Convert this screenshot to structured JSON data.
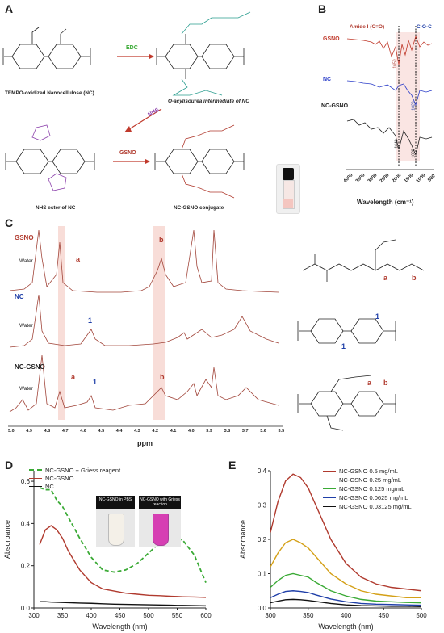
{
  "panelA": {
    "letter": "A",
    "struct1_label": "TEMPO-oxidized Nanocellulose (NC)",
    "struct2_label": "O-acylisourea intermediate of NC",
    "struct3_label": "NHS ester of NC",
    "struct4_label": "NC-GSNO conjugate",
    "reagent1": "EDC",
    "reagent2": "NHS",
    "reagent3": "GSNO",
    "n": "n"
  },
  "panelB": {
    "letter": "B",
    "label_amide": "Amide I (C=O)",
    "label_coc": "C-O-C",
    "traces": [
      "GSNO",
      "NC",
      "NC-GSNO"
    ],
    "peak_gsno": "1650",
    "peak_nc": "1020",
    "peak_ncgsno_1": "1640",
    "peak_ncgsno_2": "1020",
    "xticks": [
      "4000",
      "3500",
      "3000",
      "2500",
      "2000",
      "1500",
      "1000",
      "500"
    ],
    "xlabel": "Wavelength (cm⁻¹)"
  },
  "panelC": {
    "letter": "C",
    "spectra": [
      "GSNO",
      "NC",
      "NC-GSNO"
    ],
    "water": "Water",
    "peak_a": "a",
    "peak_b": "b",
    "peak_1": "1",
    "xticks": [
      "5.0",
      "4.9",
      "4.8",
      "4.7",
      "4.6",
      "4.5",
      "4.4",
      "4.3",
      "4.2",
      "4.1",
      "4.0",
      "3.9",
      "3.8",
      "3.7",
      "3.6",
      "3.5"
    ],
    "xlabel": "ppm",
    "n": "n"
  },
  "panelD": {
    "letter": "D",
    "legend": [
      "NC-GSNO + Griess reagent",
      "NC-GSNO",
      "NC"
    ],
    "inset1_title": "NC-GSNO in PBS",
    "inset2_title": "NC-GSNO with Griess reaction",
    "ylabel": "Absorbance",
    "xlabel": "Wavelength (nm)",
    "yticks": [
      "0.0",
      "0.2",
      "0.4",
      "0.6"
    ],
    "xticks": [
      "300",
      "350",
      "400",
      "450",
      "500",
      "550",
      "600"
    ],
    "colors": {
      "griess": "#3aaa35",
      "ncgsno": "#b03a2e",
      "nc": "#111111"
    }
  },
  "panelE": {
    "letter": "E",
    "legend": [
      "NC-GSNO 0.5 mg/mL",
      "NC-GSNO 0.25 mg/mL",
      "NC-GSNO 0.125 mg/mL",
      "NC-GSNO 0.0625 mg/mL",
      "NC-GSNO 0.03125 mg/mL"
    ],
    "ylabel": "Absorbance",
    "xlabel": "Wavelength (nm)",
    "yticks": [
      "0.0",
      "0.1",
      "0.2",
      "0.3",
      "0.4"
    ],
    "xticks": [
      "300",
      "350",
      "400",
      "450",
      "500"
    ],
    "colors": [
      "#b03a2e",
      "#d4a017",
      "#3aaa35",
      "#1f3fa8",
      "#111111"
    ]
  },
  "chart_data": [
    {
      "type": "line",
      "xlabel": "Wavelength (nm)",
      "ylabel": "Absorbance",
      "xlim": [
        300,
        600
      ],
      "ylim": [
        0,
        0.65
      ],
      "x": [
        310,
        320,
        330,
        340,
        350,
        360,
        380,
        400,
        420,
        440,
        460,
        480,
        500,
        520,
        540,
        550,
        560,
        580,
        600
      ],
      "series": [
        {
          "name": "NC-GSNO + Griess reagent",
          "values": [
            0.57,
            0.56,
            0.56,
            0.51,
            0.48,
            0.43,
            0.33,
            0.24,
            0.18,
            0.17,
            0.18,
            0.21,
            0.26,
            0.31,
            0.33,
            0.33,
            0.32,
            0.25,
            0.12
          ]
        },
        {
          "name": "NC-GSNO",
          "values": [
            0.3,
            0.37,
            0.39,
            0.37,
            0.33,
            0.27,
            0.18,
            0.12,
            0.09,
            0.08,
            0.07,
            0.065,
            0.06,
            0.058,
            0.055,
            0.054,
            0.053,
            0.052,
            0.05
          ]
        },
        {
          "name": "NC",
          "values": [
            0.03,
            0.03,
            0.028,
            0.027,
            0.026,
            0.025,
            0.023,
            0.022,
            0.02,
            0.018,
            0.017,
            0.016,
            0.015,
            0.014,
            0.013,
            0.012,
            0.012,
            0.011,
            0.01
          ]
        }
      ]
    },
    {
      "type": "line",
      "xlabel": "Wavelength (nm)",
      "ylabel": "Absorbance",
      "xlim": [
        300,
        500
      ],
      "ylim": [
        0,
        0.4
      ],
      "x": [
        300,
        310,
        320,
        330,
        340,
        350,
        360,
        380,
        400,
        420,
        440,
        460,
        480,
        500
      ],
      "series": [
        {
          "name": "NC-GSNO 0.5 mg/mL",
          "values": [
            0.22,
            0.31,
            0.37,
            0.39,
            0.38,
            0.35,
            0.3,
            0.2,
            0.13,
            0.09,
            0.07,
            0.06,
            0.055,
            0.05
          ]
        },
        {
          "name": "NC-GSNO 0.25 mg/mL",
          "values": [
            0.12,
            0.16,
            0.19,
            0.2,
            0.19,
            0.175,
            0.15,
            0.1,
            0.07,
            0.05,
            0.04,
            0.035,
            0.03,
            0.03
          ]
        },
        {
          "name": "NC-GSNO 0.125 mg/mL",
          "values": [
            0.06,
            0.08,
            0.095,
            0.1,
            0.095,
            0.09,
            0.075,
            0.05,
            0.035,
            0.025,
            0.02,
            0.018,
            0.016,
            0.015
          ]
        },
        {
          "name": "NC-GSNO 0.0625 mg/mL",
          "values": [
            0.03,
            0.04,
            0.048,
            0.05,
            0.048,
            0.045,
            0.038,
            0.026,
            0.018,
            0.013,
            0.011,
            0.01,
            0.009,
            0.008
          ]
        },
        {
          "name": "NC-GSNO 0.03125 mg/mL",
          "values": [
            0.015,
            0.02,
            0.024,
            0.025,
            0.024,
            0.022,
            0.019,
            0.013,
            0.009,
            0.007,
            0.006,
            0.005,
            0.005,
            0.004
          ]
        }
      ]
    }
  ]
}
